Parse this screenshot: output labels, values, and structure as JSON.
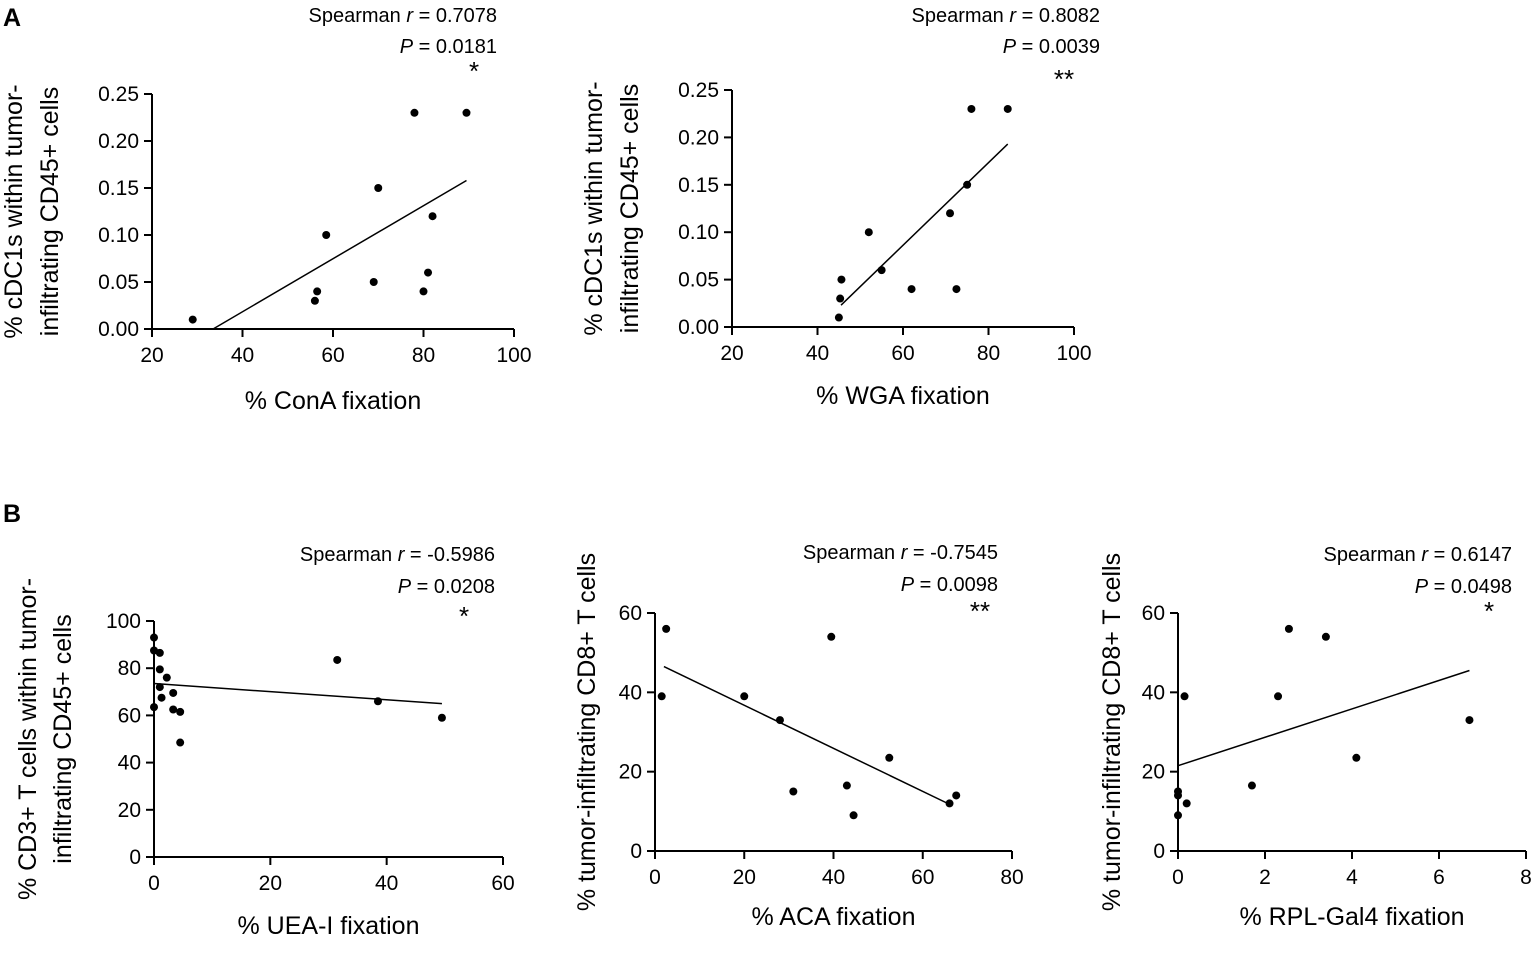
{
  "figure": {
    "panel_labels": [
      "A",
      "B"
    ]
  },
  "chart_data": [
    {
      "type": "scatter",
      "panel": "A",
      "xlabel": "% ConA fixation",
      "ylabel": [
        "% cDC1s within tumor-",
        "infiltrating CD45+ cells"
      ],
      "xlim": [
        20,
        100
      ],
      "ylim": [
        0,
        0.25
      ],
      "xticks": [
        20,
        40,
        60,
        80,
        100
      ],
      "yticks": [
        0,
        0.05,
        0.1,
        0.15,
        0.2,
        0.25
      ],
      "ytick_labels": [
        "0.00",
        "0.05",
        "0.10",
        "0.15",
        "0.20",
        "0.25"
      ],
      "stat_label": "Spearman",
      "stat_r": "r",
      "r_text": " = 0.7078",
      "p_label": "P",
      "p_text": " = 0.0181",
      "significance": "*",
      "points": [
        [
          29,
          0.01
        ],
        [
          56,
          0.03
        ],
        [
          56.5,
          0.04
        ],
        [
          58.5,
          0.1
        ],
        [
          69,
          0.05
        ],
        [
          70,
          0.15
        ],
        [
          78,
          0.23
        ],
        [
          80,
          0.04
        ],
        [
          81,
          0.06
        ],
        [
          82,
          0.12
        ],
        [
          89.5,
          0.23
        ]
      ],
      "fit": [
        [
          33.5,
          0.0
        ],
        [
          89.5,
          0.158
        ]
      ]
    },
    {
      "type": "scatter",
      "panel": "A",
      "xlabel": "% WGA fixation",
      "ylabel": [
        "% cDC1s within tumor-",
        "infiltrating CD45+ cells"
      ],
      "xlim": [
        20,
        100
      ],
      "ylim": [
        0,
        0.25
      ],
      "xticks": [
        20,
        40,
        60,
        80,
        100
      ],
      "yticks": [
        0,
        0.05,
        0.1,
        0.15,
        0.2,
        0.25
      ],
      "ytick_labels": [
        "0.00",
        "0.05",
        "0.10",
        "0.15",
        "0.20",
        "0.25"
      ],
      "stat_label": "Spearman",
      "stat_r": "r",
      "r_text": " = 0.8082",
      "p_label": "P",
      "p_text": " = 0.0039",
      "significance": "**",
      "points": [
        [
          45,
          0.01
        ],
        [
          45.3,
          0.03
        ],
        [
          45.6,
          0.05
        ],
        [
          52,
          0.1
        ],
        [
          55,
          0.06
        ],
        [
          62,
          0.04
        ],
        [
          71,
          0.12
        ],
        [
          72.5,
          0.04
        ],
        [
          75,
          0.15
        ],
        [
          76,
          0.23
        ],
        [
          84.5,
          0.23
        ]
      ],
      "fit": [
        [
          45.5,
          0.023
        ],
        [
          84.5,
          0.193
        ]
      ]
    },
    {
      "type": "scatter",
      "panel": "B",
      "xlabel": "% UEA-I fixation",
      "ylabel": [
        "% CD3+ T cells within tumor-",
        "infiltrating CD45+ cells"
      ],
      "xlim": [
        0,
        60
      ],
      "ylim": [
        0,
        100
      ],
      "xticks": [
        0,
        20,
        40,
        60
      ],
      "yticks": [
        0,
        20,
        40,
        60,
        80,
        100
      ],
      "ytick_labels": [
        "0",
        "20",
        "40",
        "60",
        "80",
        "100"
      ],
      "stat_label": "Spearman",
      "stat_r": "r",
      "r_text": " = -0.5986",
      "p_label": "P",
      "p_text": " = 0.0208",
      "significance": "*",
      "points": [
        [
          0,
          93
        ],
        [
          0,
          87.5
        ],
        [
          0,
          63.5
        ],
        [
          1,
          86.5
        ],
        [
          1,
          79.5
        ],
        [
          1,
          72
        ],
        [
          1.3,
          67.5
        ],
        [
          2.2,
          76
        ],
        [
          3.3,
          69.5
        ],
        [
          3.3,
          62.5
        ],
        [
          4.5,
          61.5
        ],
        [
          4.5,
          48.5
        ],
        [
          31.5,
          83.5
        ],
        [
          38.5,
          66
        ],
        [
          49.5,
          59
        ]
      ],
      "fit": [
        [
          0,
          73.5
        ],
        [
          49.5,
          65
        ]
      ]
    },
    {
      "type": "scatter",
      "panel": "B",
      "xlabel": "% ACA fixation",
      "ylabel": [
        "% tumor-infiltrating CD8+ T cells"
      ],
      "xlim": [
        0,
        80
      ],
      "ylim": [
        0,
        60
      ],
      "xticks": [
        0,
        20,
        40,
        60,
        80
      ],
      "yticks": [
        0,
        20,
        40,
        60
      ],
      "ytick_labels": [
        "0",
        "20",
        "40",
        "60"
      ],
      "stat_label": "Spearman",
      "stat_r": "r",
      "r_text": " = -0.7545",
      "p_label": "P",
      "p_text": " = 0.0098",
      "significance": "**",
      "points": [
        [
          1.5,
          39
        ],
        [
          2.5,
          56
        ],
        [
          20,
          39
        ],
        [
          28,
          33
        ],
        [
          31,
          15
        ],
        [
          39.5,
          54
        ],
        [
          43,
          16.5
        ],
        [
          44.5,
          9
        ],
        [
          52.5,
          23.5
        ],
        [
          66,
          12
        ],
        [
          67.5,
          14
        ]
      ],
      "fit": [
        [
          2,
          46.5
        ],
        [
          66.5,
          11.5
        ]
      ]
    },
    {
      "type": "scatter",
      "panel": "B",
      "xlabel": "% RPL-Gal4 fixation",
      "ylabel": [
        "% tumor-infiltrating CD8+ T cells"
      ],
      "xlim": [
        0,
        8
      ],
      "ylim": [
        0,
        60
      ],
      "xticks": [
        0,
        2,
        4,
        6,
        8
      ],
      "yticks": [
        0,
        20,
        40,
        60
      ],
      "ytick_labels": [
        "0",
        "20",
        "40",
        "60"
      ],
      "stat_label": "Spearman",
      "stat_r": "r",
      "r_text": " = 0.6147",
      "p_label": "P",
      "p_text": " = 0.0498",
      "significance": "*",
      "points": [
        [
          0,
          15
        ],
        [
          0,
          14
        ],
        [
          0,
          9
        ],
        [
          0.15,
          39
        ],
        [
          0.2,
          12
        ],
        [
          1.7,
          16.5
        ],
        [
          2.3,
          39
        ],
        [
          2.55,
          56
        ],
        [
          3.4,
          54
        ],
        [
          4.1,
          23.5
        ],
        [
          6.7,
          33
        ]
      ],
      "fit": [
        [
          0,
          21.5
        ],
        [
          6.7,
          45.5
        ]
      ]
    }
  ]
}
